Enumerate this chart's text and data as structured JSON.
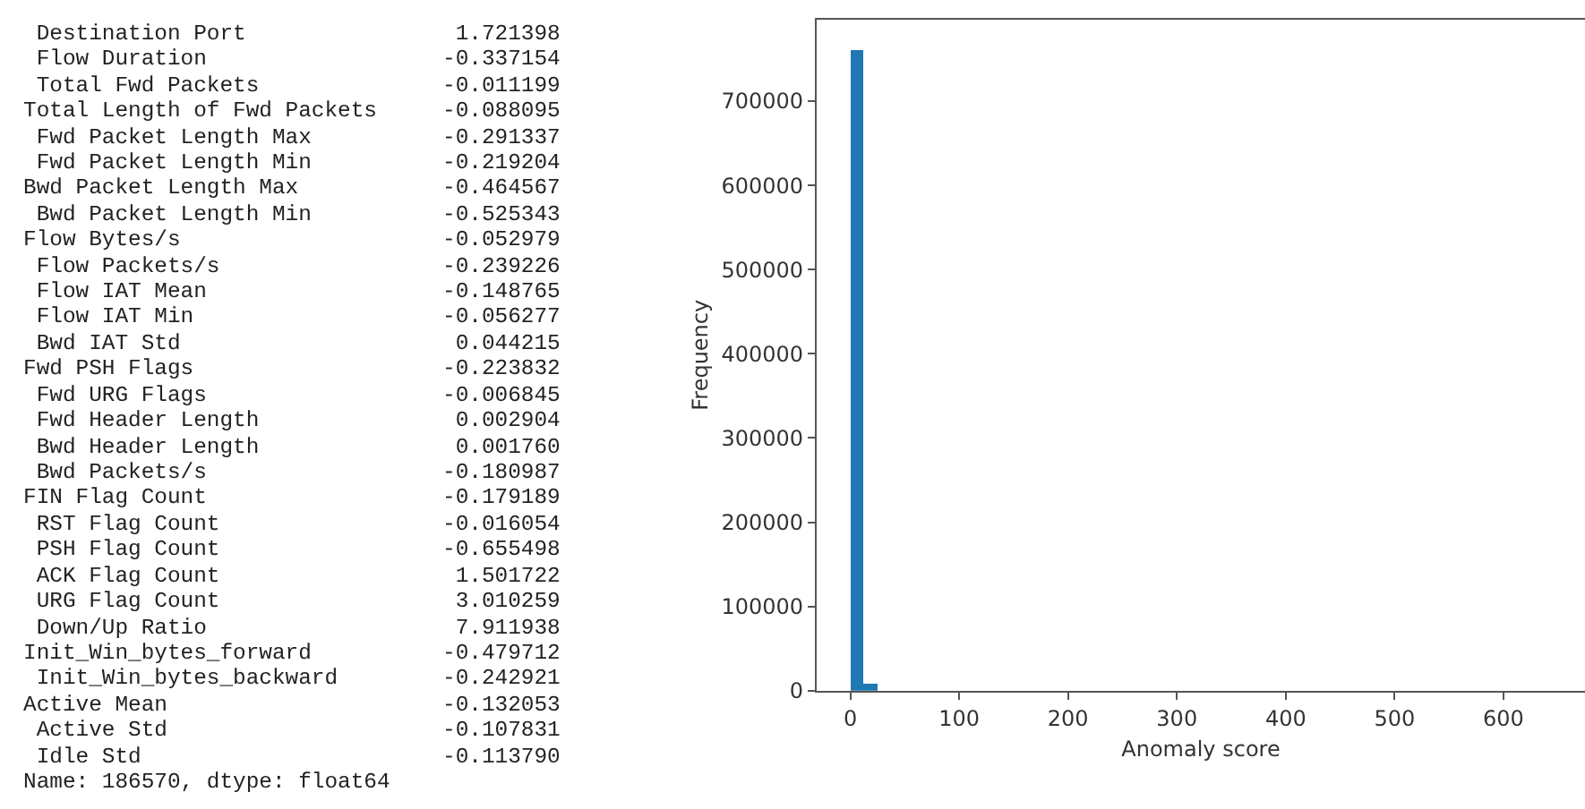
{
  "chart_data": [
    {
      "type": "other",
      "annotations": [
        " Destination Port                1.721398",
        " Flow Duration                  -0.337154",
        " Total Fwd Packets              -0.011199",
        "Total Length of Fwd Packets     -0.088095",
        " Fwd Packet Length Max          -0.291337",
        " Fwd Packet Length Min          -0.219204",
        "Bwd Packet Length Max           -0.464567",
        " Bwd Packet Length Min          -0.525343",
        "Flow Bytes/s                    -0.052979",
        " Flow Packets/s                 -0.239226",
        " Flow IAT Mean                  -0.148765",
        " Flow IAT Min                   -0.056277",
        " Bwd IAT Std                     0.044215",
        "Fwd PSH Flags                   -0.223832",
        " Fwd URG Flags                  -0.006845",
        " Fwd Header Length               0.002904",
        " Bwd Header Length               0.001760",
        " Bwd Packets/s                  -0.180987",
        "FIN Flag Count                  -0.179189",
        " RST Flag Count                 -0.016054",
        " PSH Flag Count                 -0.655498",
        " ACK Flag Count                  1.501722",
        " URG Flag Count                  3.010259",
        " Down/Up Ratio                   7.911938",
        "Init_Win_bytes_forward          -0.479712",
        " Init_Win_bytes_backward        -0.242921",
        "Active Mean                     -0.132053",
        " Active Std                     -0.107831",
        " Idle Std                       -0.113790",
        "Name: 186570, dtype: float64"
      ]
    },
    {
      "type": "histogram",
      "bins": [
        0,
        12.6,
        25.2
      ],
      "values": [
        760000,
        8000
      ],
      "color": "#1f77b4",
      "xlabel": "Anomaly score",
      "ylabel": "Frequency",
      "xlim": [
        -31,
        675
      ],
      "ylim": [
        0,
        797000
      ],
      "xticks": [
        0,
        100,
        200,
        300,
        400,
        500,
        600
      ],
      "yticks": [
        0,
        100000,
        200000,
        300000,
        400000,
        500000,
        600000,
        700000
      ]
    }
  ]
}
